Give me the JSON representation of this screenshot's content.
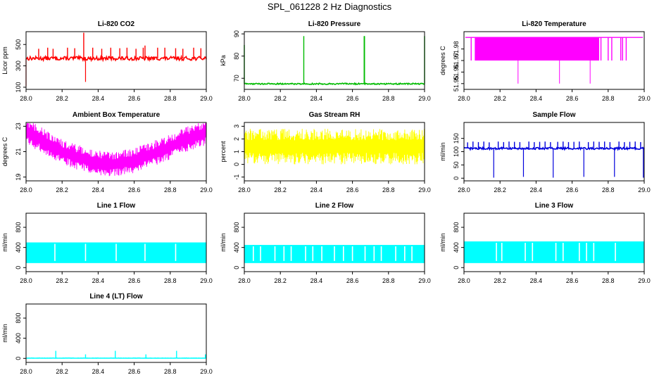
{
  "figure": {
    "title": "SPL_061228  2 Hz Diagnostics"
  },
  "chart_data": [
    {
      "id": "co2",
      "type": "line",
      "title": "Li-820 CO2",
      "xlabel": "",
      "ylabel": "Licor ppm",
      "xlim": [
        28.0,
        29.0
      ],
      "ylim": [
        80,
        620
      ],
      "xticks": [
        28.0,
        28.2,
        28.4,
        28.6,
        28.8,
        29.0
      ],
      "xtick_labels": [
        "28.0",
        "28.2",
        "28.4",
        "28.6",
        "28.8",
        "29.0"
      ],
      "yticks": [
        100,
        300,
        500
      ],
      "ytick_labels": [
        "100",
        "300",
        "500"
      ],
      "color": "#ff0000",
      "pattern": "baseline_spikes",
      "baseline": 370,
      "noise": 18,
      "spike_x": [
        28.07,
        28.12,
        28.15,
        28.23,
        28.27,
        28.32,
        28.37,
        28.42,
        28.47,
        28.52,
        28.56,
        28.61,
        28.65,
        28.66,
        28.73,
        28.77,
        28.83,
        28.87,
        28.93,
        28.97
      ],
      "spike_y": [
        460,
        470,
        460,
        470,
        465,
        610,
        470,
        460,
        470,
        465,
        470,
        460,
        470,
        490,
        470,
        470,
        465,
        460,
        470,
        465
      ],
      "dip_x": [
        28.0,
        28.33
      ],
      "dip_y": [
        110,
        150
      ]
    },
    {
      "id": "pressure",
      "type": "line",
      "title": "Li-820 Pressure",
      "xlabel": "",
      "ylabel": "kPa",
      "xlim": [
        28.0,
        29.0
      ],
      "ylim": [
        65,
        91
      ],
      "xticks": [
        28.0,
        28.2,
        28.4,
        28.6,
        28.8,
        29.0
      ],
      "xtick_labels": [
        "28.0",
        "28.2",
        "28.4",
        "28.6",
        "28.8",
        "29.0"
      ],
      "yticks": [
        70,
        80,
        90
      ],
      "ytick_labels": [
        "70",
        "80",
        "90"
      ],
      "color": "#00bb00",
      "pattern": "baseline_spikes",
      "baseline": 67.5,
      "noise": 0.3,
      "spike_x": [
        28.0,
        28.33,
        28.665,
        28.667,
        29.0
      ],
      "spike_y": [
        85,
        89,
        89,
        89,
        89
      ],
      "dip_x": [],
      "dip_y": []
    },
    {
      "id": "temperature",
      "type": "line",
      "title": "Li-820 Temperature",
      "xlabel": "",
      "ylabel": "degrees C",
      "xlim": [
        28.0,
        29.0
      ],
      "ylim": [
        51.945,
        51.995
      ],
      "xticks": [
        28.0,
        28.2,
        28.4,
        28.6,
        28.8,
        29.0
      ],
      "xtick_labels": [
        "28.0",
        "28.2",
        "28.4",
        "28.6",
        "28.8",
        "29.0"
      ],
      "yticks": [
        51.95,
        51.96,
        51.97,
        51.98
      ],
      "ytick_labels": [
        "51.95",
        "51.96",
        "51.97",
        "51.98"
      ],
      "color": "#ff00ff",
      "pattern": "step_dense",
      "high": 51.99,
      "low": 51.97,
      "dense_range": [
        28.06,
        28.75
      ],
      "sparse_x": [
        28.04,
        28.76,
        28.8,
        28.82,
        28.87,
        28.88,
        28.9
      ],
      "dip_x": [
        28.3,
        28.53,
        28.7
      ],
      "dip_y": [
        51.95,
        51.95,
        51.95
      ]
    },
    {
      "id": "box_temp",
      "type": "line",
      "title": "Ambient Box Temperature",
      "xlabel": "",
      "ylabel": "degrees C",
      "xlim": [
        28.0,
        29.0
      ],
      "ylim": [
        18.7,
        23.3
      ],
      "xticks": [
        28.0,
        28.2,
        28.4,
        28.6,
        28.8,
        29.0
      ],
      "xtick_labels": [
        "28.0",
        "28.2",
        "28.4",
        "28.6",
        "28.8",
        "29.0"
      ],
      "yticks": [
        19,
        21,
        23
      ],
      "ytick_labels": [
        "19",
        "21",
        "23"
      ],
      "color": "#ff00ff",
      "pattern": "band_curve",
      "curve_x": [
        28.0,
        28.1,
        28.2,
        28.3,
        28.4,
        28.5,
        28.6,
        28.7,
        28.8,
        28.9,
        29.0
      ],
      "curve_y": [
        22.6,
        21.8,
        21.0,
        20.5,
        20.1,
        20.0,
        20.3,
        20.8,
        21.4,
        22.0,
        22.5
      ],
      "spread": 1.0
    },
    {
      "id": "rh",
      "type": "line",
      "title": "Gas Stream RH",
      "xlabel": "",
      "ylabel": "percent",
      "xlim": [
        28.0,
        29.0
      ],
      "ylim": [
        -1.3,
        3.3
      ],
      "xticks": [
        28.0,
        28.2,
        28.4,
        28.6,
        28.8,
        29.0
      ],
      "xtick_labels": [
        "28.0",
        "28.2",
        "28.4",
        "28.6",
        "28.8",
        "29.0"
      ],
      "yticks": [
        -1,
        0,
        1,
        2,
        3
      ],
      "ytick_labels": [
        "-1",
        "0",
        "1",
        "2",
        "3"
      ],
      "color": "#ffff00",
      "pattern": "band_flat",
      "center": 1.4,
      "spread": 1.4
    },
    {
      "id": "sample_flow",
      "type": "line",
      "title": "Sample Flow",
      "xlabel": "",
      "ylabel": "ml/min",
      "xlim": [
        28.0,
        29.0
      ],
      "ylim": [
        -10,
        210
      ],
      "xticks": [
        28.0,
        28.2,
        28.4,
        28.6,
        28.8,
        29.0
      ],
      "xtick_labels": [
        "28.0",
        "28.2",
        "28.4",
        "28.6",
        "28.8",
        "29.0"
      ],
      "yticks": [
        0,
        50,
        100,
        150
      ],
      "ytick_labels": [
        "0",
        "50",
        "100",
        "150"
      ],
      "color": "#0000dd",
      "pattern": "baseline_spikes",
      "baseline": 112,
      "noise": 4,
      "spike_x": [
        28.02,
        28.05,
        28.08,
        28.11,
        28.14,
        28.19,
        28.22,
        28.25,
        28.28,
        28.31,
        28.36,
        28.39,
        28.42,
        28.45,
        28.48,
        28.52,
        28.55,
        28.58,
        28.61,
        28.64,
        28.69,
        28.72,
        28.75,
        28.78,
        28.81,
        28.86,
        28.89,
        28.92,
        28.95,
        28.98
      ],
      "spike_y": [
        135,
        138,
        136,
        138,
        135,
        138,
        136,
        138,
        137,
        136,
        138,
        136,
        137,
        138,
        136,
        137,
        138,
        136,
        137,
        138,
        136,
        138,
        137,
        138,
        136,
        138,
        136,
        137,
        138,
        136
      ],
      "dip_x": [
        28.165,
        28.33,
        28.495,
        28.665,
        28.835,
        28.995
      ],
      "dip_y": [
        2,
        5,
        2,
        5,
        5,
        2
      ]
    },
    {
      "id": "line1",
      "type": "line",
      "title": "Line 1 Flow",
      "xlabel": "",
      "ylabel": "ml/min",
      "xlim": [
        28.0,
        29.0
      ],
      "ylim": [
        -80,
        1080
      ],
      "xticks": [
        28.0,
        28.2,
        28.4,
        28.6,
        28.8,
        29.0
      ],
      "xtick_labels": [
        "28.0",
        "28.2",
        "28.4",
        "28.6",
        "28.8",
        "29.0"
      ],
      "yticks": [
        0,
        400,
        800
      ],
      "ytick_labels": [
        "0",
        "400",
        "800"
      ],
      "color": "#00ffff",
      "pattern": "block",
      "low": 90,
      "high": 500,
      "range": [
        28.0,
        29.0
      ],
      "gaps": [
        28.16,
        28.33,
        28.5,
        28.66,
        28.83
      ]
    },
    {
      "id": "line2",
      "type": "line",
      "title": "Line 2 Flow",
      "xlabel": "",
      "ylabel": "ml/min",
      "xlim": [
        28.0,
        29.0
      ],
      "ylim": [
        -80,
        1080
      ],
      "xticks": [
        28.0,
        28.2,
        28.4,
        28.6,
        28.8,
        29.0
      ],
      "xtick_labels": [
        "28.0",
        "28.2",
        "28.4",
        "28.6",
        "28.8",
        "29.0"
      ],
      "yticks": [
        0,
        400,
        800
      ],
      "ytick_labels": [
        "0",
        "400",
        "800"
      ],
      "color": "#00ffff",
      "pattern": "block",
      "low": 90,
      "high": 450,
      "range": [
        28.0,
        29.0
      ],
      "gaps": [
        28.05,
        28.09,
        28.17,
        28.22,
        28.26,
        28.34,
        28.38,
        28.43,
        28.5,
        28.55,
        28.6,
        28.67,
        28.72,
        28.76,
        28.84,
        28.89,
        28.93
      ]
    },
    {
      "id": "line3",
      "type": "line",
      "title": "Line 3 Flow",
      "xlabel": "",
      "ylabel": "ml/min",
      "xlim": [
        28.0,
        29.0
      ],
      "ylim": [
        -80,
        1080
      ],
      "xticks": [
        28.0,
        28.2,
        28.4,
        28.6,
        28.8,
        29.0
      ],
      "xtick_labels": [
        "28.0",
        "28.2",
        "28.4",
        "28.6",
        "28.8",
        "29.0"
      ],
      "yticks": [
        0,
        400,
        800
      ],
      "ytick_labels": [
        "0",
        "400",
        "800"
      ],
      "color": "#00ffff",
      "pattern": "block",
      "low": 90,
      "high": 520,
      "range": [
        28.0,
        29.0
      ],
      "gaps": [
        28.18,
        28.21,
        28.34,
        28.38,
        28.51,
        28.55,
        28.64,
        28.68,
        28.72,
        28.84
      ]
    },
    {
      "id": "line4",
      "type": "line",
      "title": "Line 4 (LT) Flow",
      "xlabel": "",
      "ylabel": "ml/min",
      "xlim": [
        28.0,
        29.0
      ],
      "ylim": [
        -80,
        1080
      ],
      "xticks": [
        28.0,
        28.2,
        28.4,
        28.6,
        28.8,
        29.0
      ],
      "xtick_labels": [
        "28.0",
        "28.2",
        "28.4",
        "28.6",
        "28.8",
        "29.0"
      ],
      "yticks": [
        0,
        400,
        800
      ],
      "ytick_labels": [
        "0",
        "400",
        "800"
      ],
      "color": "#00ffff",
      "pattern": "baseline_spikes",
      "baseline": 5,
      "noise": 2,
      "spike_x": [
        28.165,
        28.33,
        28.495,
        28.665,
        28.835,
        28.995
      ],
      "spike_y": [
        150,
        80,
        150,
        80,
        150,
        80
      ],
      "dip_x": [],
      "dip_y": []
    }
  ]
}
